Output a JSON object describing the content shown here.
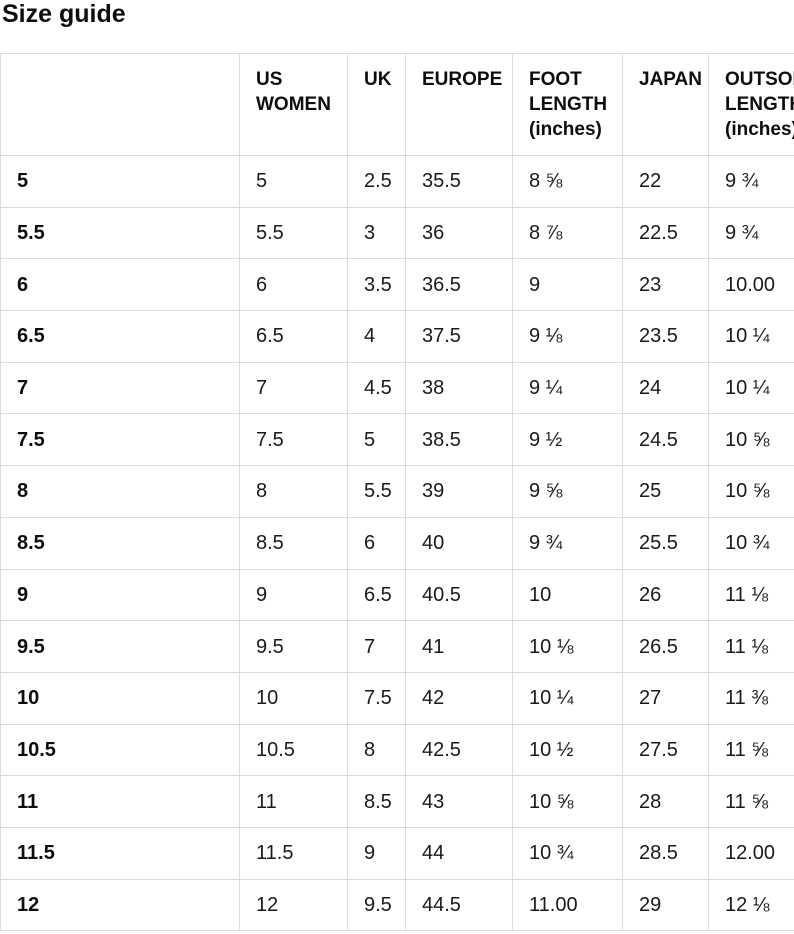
{
  "page": {
    "title": "Size guide"
  },
  "colors": {
    "border": "#dcdcdc",
    "text": "#111111",
    "background": "#ffffff"
  },
  "table": {
    "headers": [
      "",
      "US WOMEN",
      "UK",
      "EUROPE",
      "FOOT LENGTH (inches)",
      "JAPAN",
      "OUTSOLE LENGTH (inches)"
    ],
    "rows": [
      {
        "label": "5",
        "cells": [
          "5",
          "2.5",
          "35.5",
          "8 ⅝",
          "22",
          "9 ¾"
        ]
      },
      {
        "label": "5.5",
        "cells": [
          "5.5",
          "3",
          "36",
          "8 ⅞",
          "22.5",
          "9 ¾"
        ]
      },
      {
        "label": "6",
        "cells": [
          "6",
          "3.5",
          "36.5",
          "9",
          "23",
          "10.00"
        ]
      },
      {
        "label": "6.5",
        "cells": [
          "6.5",
          "4",
          "37.5",
          "9 ⅛",
          "23.5",
          "10 ¼"
        ]
      },
      {
        "label": "7",
        "cells": [
          "7",
          "4.5",
          "38",
          "9 ¼",
          "24",
          "10 ¼"
        ]
      },
      {
        "label": "7.5",
        "cells": [
          "7.5",
          "5",
          "38.5",
          "9 ½",
          "24.5",
          "10 ⅝"
        ]
      },
      {
        "label": "8",
        "cells": [
          "8",
          "5.5",
          "39",
          "9 ⅝",
          "25",
          "10 ⅝"
        ]
      },
      {
        "label": "8.5",
        "cells": [
          "8.5",
          "6",
          "40",
          "9 ¾",
          "25.5",
          "10 ¾"
        ]
      },
      {
        "label": "9",
        "cells": [
          "9",
          "6.5",
          "40.5",
          "10",
          "26",
          "11 ⅛"
        ]
      },
      {
        "label": "9.5",
        "cells": [
          "9.5",
          "7",
          "41",
          "10 ⅛",
          "26.5",
          "11 ⅛"
        ]
      },
      {
        "label": "10",
        "cells": [
          "10",
          "7.5",
          "42",
          "10 ¼",
          "27",
          "11 ⅜"
        ]
      },
      {
        "label": "10.5",
        "cells": [
          "10.5",
          "8",
          "42.5",
          "10 ½",
          "27.5",
          "11 ⅝"
        ]
      },
      {
        "label": "11",
        "cells": [
          "11",
          "8.5",
          "43",
          "10 ⅝",
          "28",
          "11 ⅝"
        ]
      },
      {
        "label": "11.5",
        "cells": [
          "11.5",
          "9",
          "44",
          "10 ¾",
          "28.5",
          "12.00"
        ]
      },
      {
        "label": "12",
        "cells": [
          "12",
          "9.5",
          "44.5",
          "11.00",
          "29",
          "12 ⅛"
        ]
      }
    ]
  }
}
